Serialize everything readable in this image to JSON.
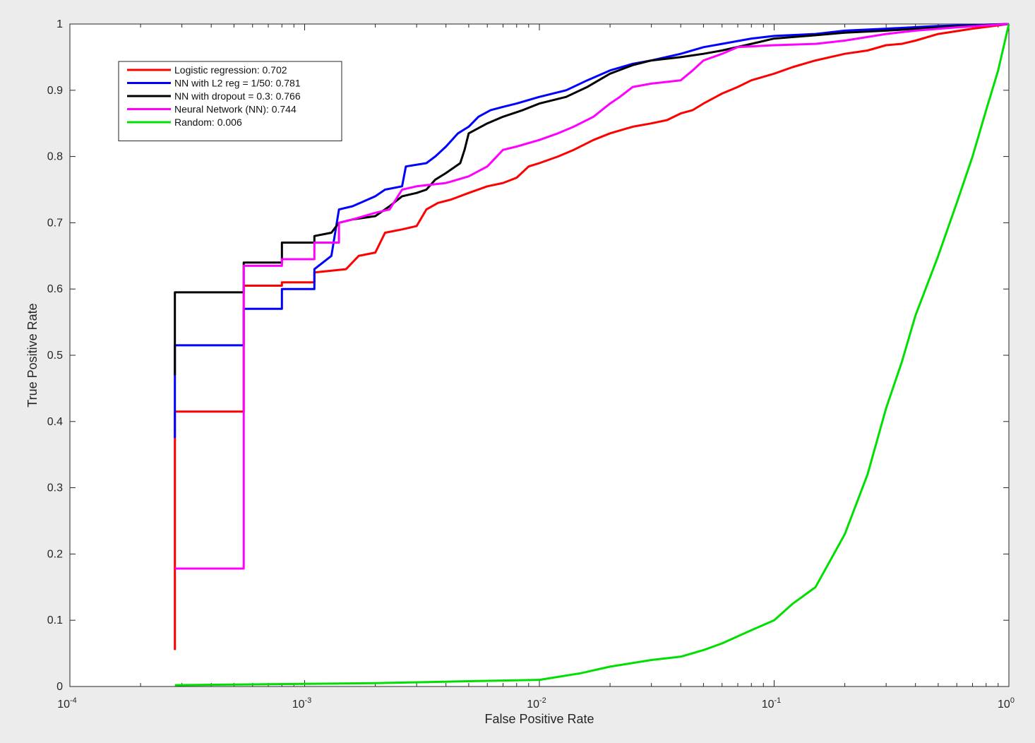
{
  "chart_data": {
    "type": "line",
    "title": "",
    "xlabel": "False Positive Rate",
    "ylabel": "True Positive Rate",
    "xscale": "log",
    "xlim": [
      0.0001,
      1
    ],
    "ylim": [
      0,
      1
    ],
    "grid": false,
    "legend_placement": "top-left",
    "xticks": [
      {
        "base": "10",
        "exp": "-4",
        "value": 0.0001
      },
      {
        "base": "10",
        "exp": "-3",
        "value": 0.001
      },
      {
        "base": "10",
        "exp": "-2",
        "value": 0.01
      },
      {
        "base": "10",
        "exp": "-1",
        "value": 0.1
      },
      {
        "base": "10",
        "exp": "0",
        "value": 1
      }
    ],
    "yticks": [
      {
        "label": "0",
        "value": 0
      },
      {
        "label": "0.1",
        "value": 0.1
      },
      {
        "label": "0.2",
        "value": 0.2
      },
      {
        "label": "0.3",
        "value": 0.3
      },
      {
        "label": "0.4",
        "value": 0.4
      },
      {
        "label": "0.5",
        "value": 0.5
      },
      {
        "label": "0.6",
        "value": 0.6
      },
      {
        "label": "0.7",
        "value": 0.7
      },
      {
        "label": "0.8",
        "value": 0.8
      },
      {
        "label": "0.9",
        "value": 0.9
      },
      {
        "label": "1",
        "value": 1
      }
    ],
    "series": [
      {
        "name": "Logistic regression: 0.702",
        "color": "#ff0000",
        "points": [
          [
            0.00028,
            0.055
          ],
          [
            0.00028,
            0.415
          ],
          [
            0.00055,
            0.415
          ],
          [
            0.00055,
            0.605
          ],
          [
            0.0008,
            0.605
          ],
          [
            0.0008,
            0.61
          ],
          [
            0.0011,
            0.61
          ],
          [
            0.0011,
            0.625
          ],
          [
            0.0015,
            0.63
          ],
          [
            0.0017,
            0.65
          ],
          [
            0.002,
            0.655
          ],
          [
            0.0022,
            0.685
          ],
          [
            0.0026,
            0.69
          ],
          [
            0.003,
            0.695
          ],
          [
            0.0033,
            0.72
          ],
          [
            0.0037,
            0.73
          ],
          [
            0.0042,
            0.735
          ],
          [
            0.005,
            0.745
          ],
          [
            0.006,
            0.755
          ],
          [
            0.007,
            0.76
          ],
          [
            0.008,
            0.768
          ],
          [
            0.009,
            0.785
          ],
          [
            0.01,
            0.79
          ],
          [
            0.012,
            0.8
          ],
          [
            0.014,
            0.81
          ],
          [
            0.017,
            0.825
          ],
          [
            0.02,
            0.835
          ],
          [
            0.025,
            0.845
          ],
          [
            0.03,
            0.85
          ],
          [
            0.035,
            0.855
          ],
          [
            0.04,
            0.865
          ],
          [
            0.045,
            0.87
          ],
          [
            0.05,
            0.88
          ],
          [
            0.06,
            0.895
          ],
          [
            0.07,
            0.905
          ],
          [
            0.08,
            0.915
          ],
          [
            0.1,
            0.925
          ],
          [
            0.12,
            0.935
          ],
          [
            0.15,
            0.945
          ],
          [
            0.2,
            0.955
          ],
          [
            0.25,
            0.96
          ],
          [
            0.3,
            0.968
          ],
          [
            0.35,
            0.97
          ],
          [
            0.4,
            0.975
          ],
          [
            0.5,
            0.985
          ],
          [
            0.7,
            0.993
          ],
          [
            1.0,
            1.0
          ]
        ]
      },
      {
        "name": "NN with L2 reg = 1/50: 0.781",
        "color": "#0000ff",
        "points": [
          [
            0.00028,
            0.375
          ],
          [
            0.00028,
            0.515
          ],
          [
            0.00055,
            0.515
          ],
          [
            0.00055,
            0.57
          ],
          [
            0.0008,
            0.57
          ],
          [
            0.0008,
            0.6
          ],
          [
            0.0011,
            0.6
          ],
          [
            0.0011,
            0.63
          ],
          [
            0.0013,
            0.65
          ],
          [
            0.0014,
            0.72
          ],
          [
            0.0016,
            0.725
          ],
          [
            0.002,
            0.74
          ],
          [
            0.0022,
            0.75
          ],
          [
            0.0026,
            0.755
          ],
          [
            0.0027,
            0.785
          ],
          [
            0.0033,
            0.79
          ],
          [
            0.0036,
            0.8
          ],
          [
            0.004,
            0.815
          ],
          [
            0.0045,
            0.835
          ],
          [
            0.005,
            0.845
          ],
          [
            0.0055,
            0.86
          ],
          [
            0.0062,
            0.87
          ],
          [
            0.007,
            0.875
          ],
          [
            0.008,
            0.88
          ],
          [
            0.01,
            0.89
          ],
          [
            0.013,
            0.9
          ],
          [
            0.016,
            0.915
          ],
          [
            0.02,
            0.93
          ],
          [
            0.025,
            0.94
          ],
          [
            0.03,
            0.945
          ],
          [
            0.04,
            0.955
          ],
          [
            0.05,
            0.965
          ],
          [
            0.06,
            0.97
          ],
          [
            0.08,
            0.978
          ],
          [
            0.1,
            0.982
          ],
          [
            0.15,
            0.985
          ],
          [
            0.2,
            0.99
          ],
          [
            0.3,
            0.993
          ],
          [
            0.5,
            0.997
          ],
          [
            1.0,
            1.0
          ]
        ]
      },
      {
        "name": "NN with dropout = 0.3: 0.766",
        "color": "#000000",
        "points": [
          [
            0.00028,
            0.47
          ],
          [
            0.00028,
            0.595
          ],
          [
            0.00055,
            0.595
          ],
          [
            0.00055,
            0.64
          ],
          [
            0.0008,
            0.64
          ],
          [
            0.0008,
            0.67
          ],
          [
            0.0011,
            0.67
          ],
          [
            0.0011,
            0.68
          ],
          [
            0.0013,
            0.685
          ],
          [
            0.0014,
            0.7
          ],
          [
            0.0016,
            0.705
          ],
          [
            0.002,
            0.71
          ],
          [
            0.0023,
            0.725
          ],
          [
            0.0026,
            0.74
          ],
          [
            0.003,
            0.745
          ],
          [
            0.0033,
            0.75
          ],
          [
            0.0036,
            0.765
          ],
          [
            0.004,
            0.775
          ],
          [
            0.0046,
            0.79
          ],
          [
            0.0048,
            0.81
          ],
          [
            0.005,
            0.835
          ],
          [
            0.006,
            0.85
          ],
          [
            0.007,
            0.86
          ],
          [
            0.0085,
            0.87
          ],
          [
            0.01,
            0.88
          ],
          [
            0.013,
            0.89
          ],
          [
            0.016,
            0.905
          ],
          [
            0.02,
            0.925
          ],
          [
            0.025,
            0.938
          ],
          [
            0.03,
            0.945
          ],
          [
            0.04,
            0.95
          ],
          [
            0.05,
            0.955
          ],
          [
            0.06,
            0.96
          ],
          [
            0.08,
            0.97
          ],
          [
            0.1,
            0.978
          ],
          [
            0.15,
            0.983
          ],
          [
            0.2,
            0.987
          ],
          [
            0.3,
            0.99
          ],
          [
            0.5,
            0.995
          ],
          [
            1.0,
            1.0
          ]
        ]
      },
      {
        "name": "Neural Network (NN): 0.744",
        "color": "#ff00ff",
        "points": [
          [
            0.00028,
            0.178
          ],
          [
            0.00055,
            0.178
          ],
          [
            0.00055,
            0.635
          ],
          [
            0.0008,
            0.635
          ],
          [
            0.0008,
            0.645
          ],
          [
            0.0011,
            0.645
          ],
          [
            0.0011,
            0.67
          ],
          [
            0.0014,
            0.67
          ],
          [
            0.0014,
            0.7
          ],
          [
            0.0016,
            0.705
          ],
          [
            0.002,
            0.715
          ],
          [
            0.0023,
            0.72
          ],
          [
            0.0026,
            0.75
          ],
          [
            0.003,
            0.755
          ],
          [
            0.004,
            0.76
          ],
          [
            0.005,
            0.77
          ],
          [
            0.006,
            0.785
          ],
          [
            0.007,
            0.81
          ],
          [
            0.008,
            0.815
          ],
          [
            0.01,
            0.825
          ],
          [
            0.012,
            0.835
          ],
          [
            0.014,
            0.845
          ],
          [
            0.017,
            0.86
          ],
          [
            0.02,
            0.88
          ],
          [
            0.022,
            0.89
          ],
          [
            0.025,
            0.905
          ],
          [
            0.03,
            0.91
          ],
          [
            0.04,
            0.915
          ],
          [
            0.045,
            0.93
          ],
          [
            0.05,
            0.945
          ],
          [
            0.06,
            0.955
          ],
          [
            0.07,
            0.965
          ],
          [
            0.1,
            0.968
          ],
          [
            0.15,
            0.97
          ],
          [
            0.2,
            0.975
          ],
          [
            0.3,
            0.985
          ],
          [
            0.4,
            0.99
          ],
          [
            0.6,
            0.995
          ],
          [
            1.0,
            1.0
          ]
        ]
      },
      {
        "name": "Random: 0.006",
        "color": "#00e000",
        "points": [
          [
            0.00028,
            0.002
          ],
          [
            0.0005,
            0.003
          ],
          [
            0.001,
            0.004
          ],
          [
            0.002,
            0.005
          ],
          [
            0.005,
            0.008
          ],
          [
            0.01,
            0.01
          ],
          [
            0.015,
            0.02
          ],
          [
            0.02,
            0.03
          ],
          [
            0.03,
            0.04
          ],
          [
            0.04,
            0.045
          ],
          [
            0.05,
            0.055
          ],
          [
            0.06,
            0.065
          ],
          [
            0.08,
            0.085
          ],
          [
            0.1,
            0.1
          ],
          [
            0.12,
            0.125
          ],
          [
            0.15,
            0.15
          ],
          [
            0.2,
            0.23
          ],
          [
            0.25,
            0.32
          ],
          [
            0.3,
            0.42
          ],
          [
            0.35,
            0.49
          ],
          [
            0.4,
            0.56
          ],
          [
            0.5,
            0.65
          ],
          [
            0.6,
            0.73
          ],
          [
            0.7,
            0.8
          ],
          [
            0.8,
            0.87
          ],
          [
            0.9,
            0.93
          ],
          [
            1.0,
            1.0
          ]
        ]
      }
    ]
  }
}
